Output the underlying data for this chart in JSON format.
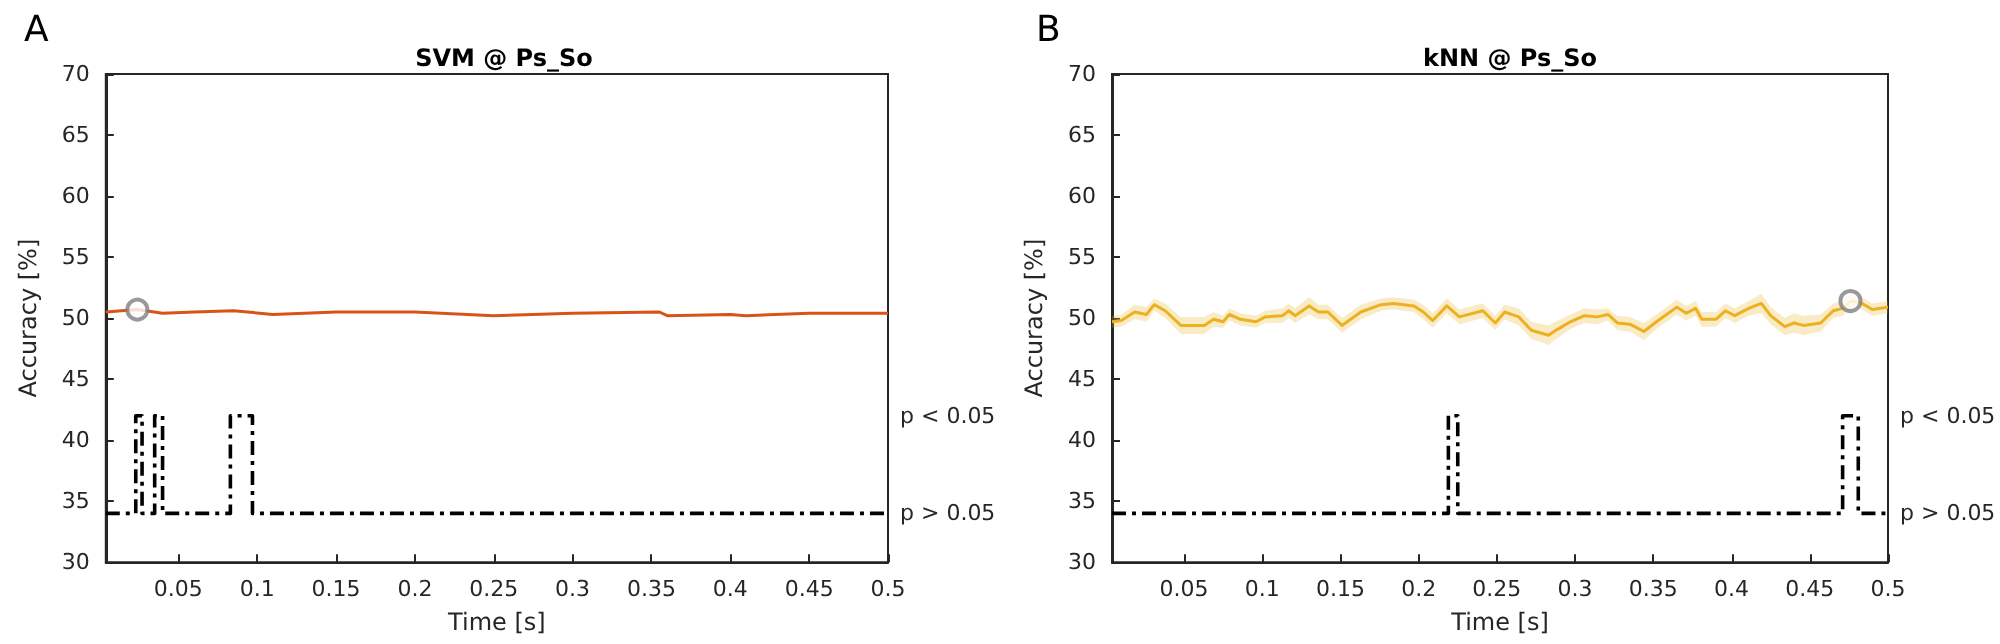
{
  "chart_data": [
    {
      "type": "line",
      "title": "SVM @ Ps_So",
      "xlabel": "Time [s]",
      "ylabel": "Accuracy [%]",
      "annotations": [
        "A",
        "p < 0.05",
        "p > 0.05"
      ],
      "xlim": [
        0.004,
        0.5
      ],
      "xticks": [
        0.05,
        0.1,
        0.15,
        0.2,
        0.25,
        0.3,
        0.35,
        0.4,
        0.45,
        0.5
      ],
      "ylim": [
        30,
        70
      ],
      "yticks": [
        30,
        35,
        40,
        45,
        50,
        55,
        60,
        65,
        70
      ],
      "grid": false,
      "series": [
        {
          "color": "#d95319",
          "marker": "none",
          "x": [
            0.004,
            0.024,
            0.04,
            0.06,
            0.085,
            0.11,
            0.15,
            0.2,
            0.25,
            0.3,
            0.355,
            0.36,
            0.4,
            0.41,
            0.45,
            0.5
          ],
          "values": [
            50.5,
            50.7,
            50.4,
            50.5,
            50.6,
            50.3,
            50.5,
            50.5,
            50.2,
            50.4,
            50.5,
            50.2,
            50.3,
            50.2,
            50.4,
            50.4
          ]
        },
        {
          "type": "scatter",
          "marker": "circle",
          "color": "#808080",
          "x": [
            0.024
          ],
          "values": [
            50.7
          ]
        },
        {
          "type": "step",
          "color": "#000000",
          "line_style": "dashed",
          "marker": "none",
          "x": [
            0.004,
            0.023,
            0.027,
            0.035,
            0.04,
            0.083,
            0.097,
            0.5
          ],
          "values": [
            34,
            42,
            34,
            42,
            34,
            42,
            34,
            34
          ]
        }
      ]
    },
    {
      "type": "line",
      "title": "kNN @ Ps_So",
      "xlabel": "Time [s]",
      "ylabel": "Accuracy [%]",
      "annotations": [
        "B",
        "p < 0.05",
        "p > 0.05"
      ],
      "xlim": [
        0.004,
        0.5
      ],
      "xticks": [
        0.05,
        0.1,
        0.15,
        0.2,
        0.25,
        0.3,
        0.35,
        0.4,
        0.45,
        0.5
      ],
      "ylim": [
        30,
        70
      ],
      "yticks": [
        30,
        35,
        40,
        45,
        50,
        55,
        60,
        65,
        70
      ],
      "grid": false,
      "series": [
        {
          "color": "#edb120",
          "marker": "none",
          "x": [
            0.004,
            0.01,
            0.0185,
            0.026,
            0.031,
            0.038,
            0.048,
            0.063,
            0.069,
            0.075,
            0.079,
            0.086,
            0.096,
            0.102,
            0.113,
            0.117,
            0.121,
            0.13,
            0.136,
            0.142,
            0.151,
            0.163,
            0.176,
            0.184,
            0.197,
            0.203,
            0.209,
            0.218,
            0.226,
            0.241,
            0.249,
            0.255,
            0.264,
            0.272,
            0.283,
            0.289,
            0.297,
            0.306,
            0.314,
            0.321,
            0.327,
            0.335,
            0.344,
            0.352,
            0.365,
            0.371,
            0.377,
            0.381,
            0.39,
            0.396,
            0.402,
            0.411,
            0.419,
            0.425,
            0.434,
            0.44,
            0.446,
            0.457,
            0.465,
            0.471,
            0.476,
            0.482,
            0.49,
            0.5
          ],
          "values": [
            49.7,
            49.8,
            50.5,
            50.3,
            51.1,
            50.6,
            49.4,
            49.4,
            49.9,
            49.7,
            50.3,
            49.9,
            49.7,
            50.1,
            50.2,
            50.6,
            50.2,
            51.0,
            50.5,
            50.5,
            49.4,
            50.5,
            51.1,
            51.2,
            51.0,
            50.5,
            49.8,
            51.0,
            50.1,
            50.6,
            49.6,
            50.5,
            50.1,
            49.0,
            48.6,
            49.1,
            49.7,
            50.2,
            50.1,
            50.3,
            49.6,
            49.5,
            48.9,
            49.7,
            50.9,
            50.4,
            50.8,
            49.9,
            49.9,
            50.6,
            50.2,
            50.8,
            51.2,
            50.2,
            49.3,
            49.6,
            49.4,
            49.6,
            50.6,
            50.8,
            51.4,
            51.3,
            50.7,
            50.9
          ],
          "lower": [
            49.2,
            49.3,
            49.9,
            49.7,
            50.6,
            50.0,
            48.7,
            48.7,
            49.3,
            49.2,
            49.8,
            49.4,
            49.2,
            49.6,
            49.6,
            50.0,
            49.6,
            50.3,
            49.9,
            49.9,
            48.8,
            49.9,
            50.6,
            50.7,
            50.5,
            49.9,
            49.2,
            50.4,
            49.5,
            50.0,
            49.0,
            49.9,
            49.4,
            48.3,
            47.8,
            48.4,
            49.1,
            49.6,
            49.5,
            49.8,
            49.0,
            48.9,
            48.2,
            49.1,
            50.3,
            49.8,
            50.2,
            49.3,
            49.3,
            50.0,
            49.6,
            50.2,
            50.4,
            49.5,
            48.6,
            48.8,
            48.6,
            48.9,
            50.0,
            50.2,
            50.8,
            50.8,
            50.2,
            50.4
          ],
          "upper": [
            50.2,
            50.3,
            51.1,
            50.9,
            51.6,
            51.2,
            50.1,
            50.1,
            50.5,
            50.2,
            50.8,
            50.4,
            50.2,
            50.6,
            50.8,
            51.2,
            50.8,
            51.7,
            51.1,
            51.1,
            50.0,
            51.1,
            51.6,
            51.7,
            51.5,
            51.1,
            50.4,
            51.6,
            50.7,
            51.2,
            50.2,
            51.1,
            50.8,
            49.7,
            49.4,
            49.8,
            50.3,
            50.8,
            50.7,
            50.8,
            50.2,
            50.1,
            49.6,
            50.3,
            51.5,
            51.0,
            51.4,
            50.5,
            50.5,
            51.2,
            50.8,
            51.4,
            52.0,
            50.9,
            50.0,
            50.4,
            50.2,
            50.3,
            51.2,
            51.4,
            52.0,
            51.8,
            51.2,
            51.4
          ]
        },
        {
          "type": "scatter",
          "marker": "circle",
          "color": "#808080",
          "x": [
            0.476
          ],
          "values": [
            51.4
          ]
        },
        {
          "type": "step",
          "color": "#000000",
          "line_style": "dashed",
          "marker": "none",
          "x": [
            0.004,
            0.219,
            0.225,
            0.471,
            0.481,
            0.5
          ],
          "values": [
            34,
            42,
            34,
            42,
            34,
            34
          ]
        }
      ]
    }
  ]
}
